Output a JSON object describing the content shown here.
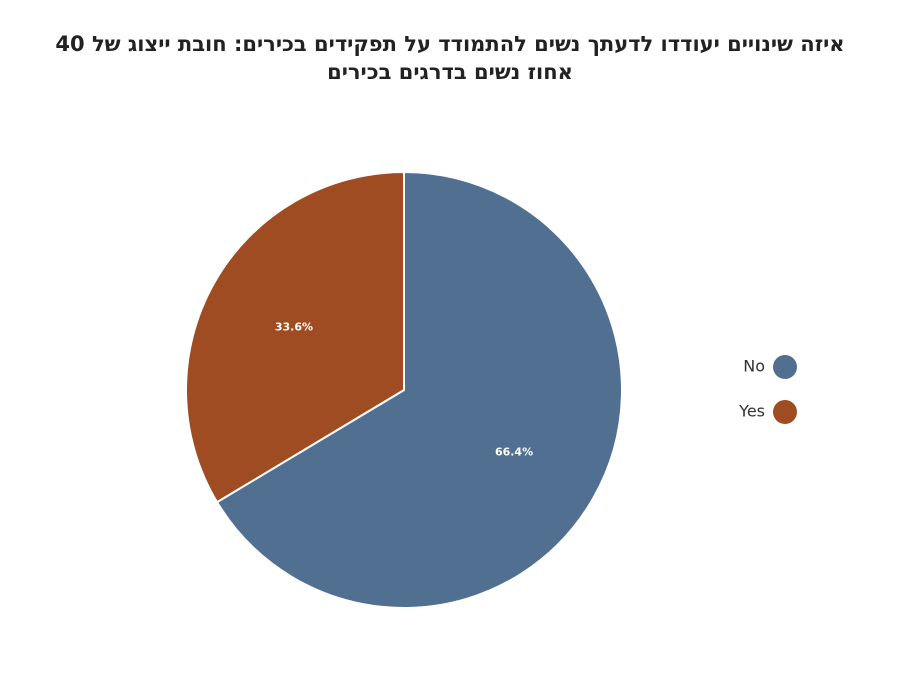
{
  "chart_data": {
    "type": "pie",
    "title": [
      "איזה שינויים יעודדו לדעתך נשים להתמודד על תפקידים בכירים: חובת ייצוג של 40",
      "אחוז נשים בדרגים בכירים"
    ],
    "slices": [
      {
        "label": "No",
        "value": 66.4,
        "display": "66.4%",
        "color": "#516f91"
      },
      {
        "label": "Yes",
        "value": 33.6,
        "display": "33.6%",
        "color": "#a04c22"
      }
    ],
    "legend_position": "right"
  }
}
